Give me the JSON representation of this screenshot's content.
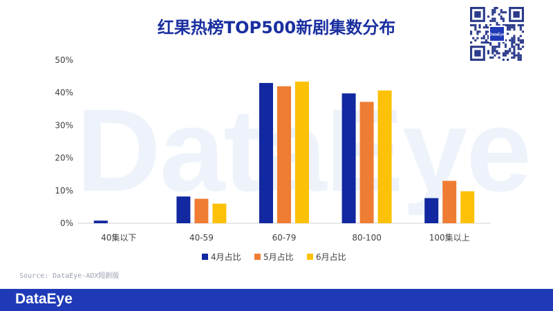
{
  "watermark_text": "DataEye",
  "footer_logo": "DataEye",
  "qr_label": "DataEye",
  "source": "Source: DataEye-ADX短剧版",
  "colors": {
    "series": [
      "#1228a0",
      "#ee7d33",
      "#fdc107"
    ],
    "title": "#1a2fa0",
    "footer": "#1f3ab7"
  },
  "chart_data": {
    "type": "bar",
    "title": "红果热榜TOP500新剧集数分布",
    "xlabel": "",
    "ylabel": "",
    "categories": [
      "40集以下",
      "40-59",
      "60-79",
      "80-100",
      "100集以上"
    ],
    "ylim": [
      0,
      50
    ],
    "yticks": [
      "0%",
      "10%",
      "20%",
      "30%",
      "40%",
      "50%"
    ],
    "legend_position": "bottom",
    "grid": false,
    "series": [
      {
        "name": "4月占比",
        "values": [
          0.8,
          8.2,
          43.0,
          39.8,
          7.7
        ]
      },
      {
        "name": "5月占比",
        "values": [
          0,
          7.5,
          42.0,
          37.2,
          13.0
        ]
      },
      {
        "name": "6月占比",
        "values": [
          0,
          6.0,
          43.4,
          40.7,
          9.8
        ]
      }
    ]
  }
}
